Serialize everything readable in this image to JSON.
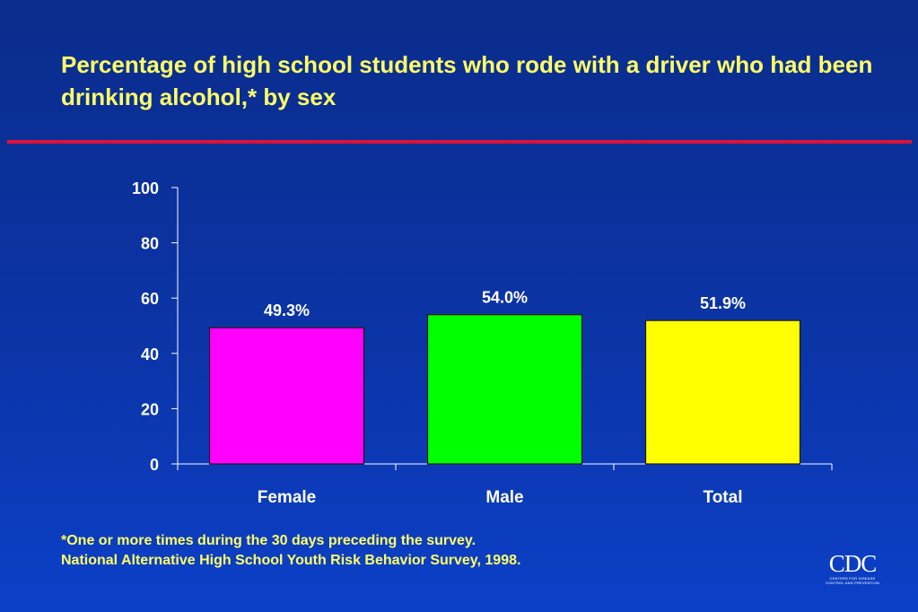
{
  "title": "Percentage of high school students who rode with a driver who had been drinking alcohol,* by sex",
  "footnotes": [
    "*One or more times during the 30 days preceding the survey.",
    "National Alternative High School Youth Risk Behavior Survey, 1998."
  ],
  "logo": {
    "mark": "CDC",
    "subtitle": "CENTERS FOR DISEASE CONTROL AND PREVENTION"
  },
  "colors": {
    "title": "#ffff66",
    "rule": "#e0103a",
    "axis": "#ffffff"
  },
  "chart_data": {
    "type": "bar",
    "categories": [
      "Female",
      "Male",
      "Total"
    ],
    "values": [
      49.3,
      54.0,
      51.9
    ],
    "data_labels": [
      "49.3%",
      "54.0%",
      "51.9%"
    ],
    "bar_colors": [
      "#ff00ff",
      "#00ff00",
      "#ffff00"
    ],
    "ylim": [
      0,
      100
    ],
    "yticks": [
      0,
      20,
      40,
      60,
      80,
      100
    ],
    "xlabel": "",
    "ylabel": "",
    "grid": false,
    "legend": "none"
  }
}
